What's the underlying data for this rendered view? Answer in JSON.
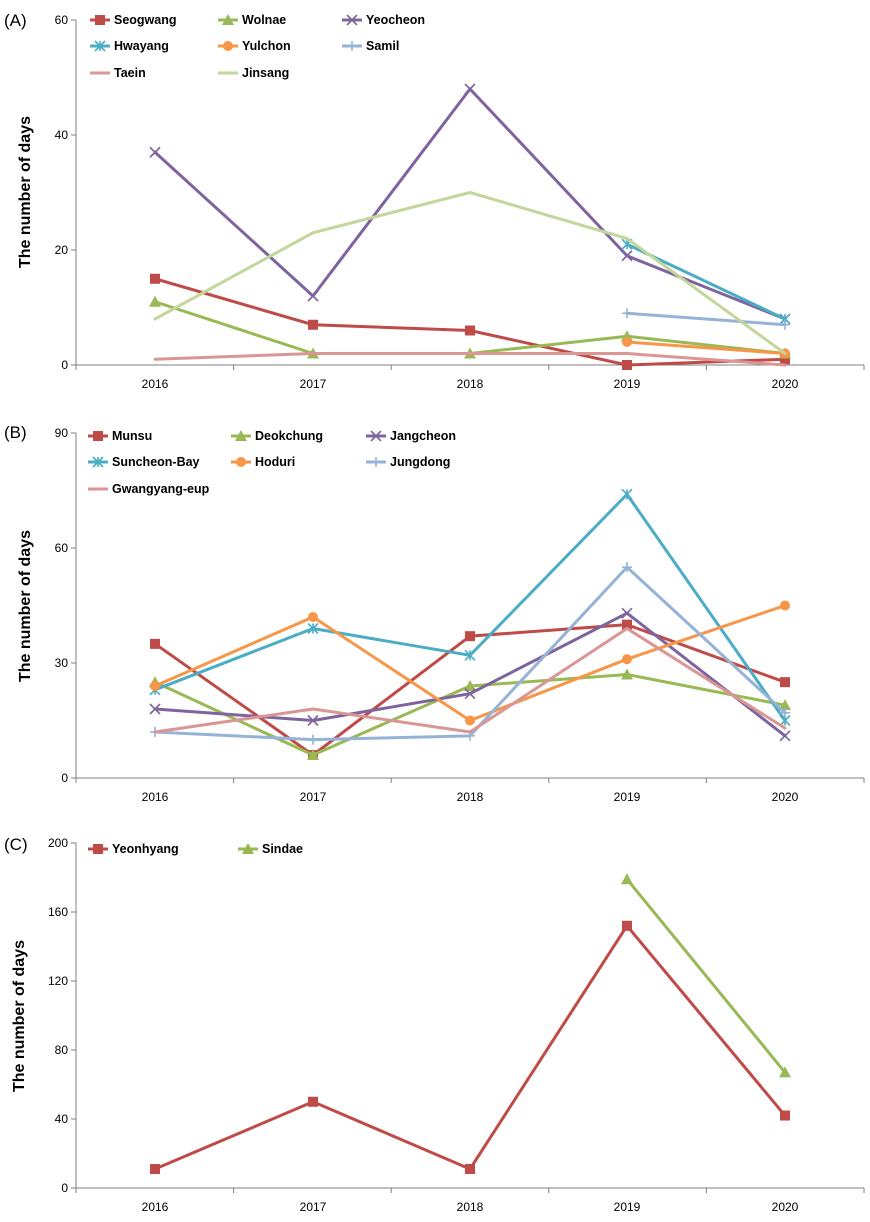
{
  "chart_data": [
    {
      "type": "line",
      "panel_label": "(A)",
      "ylabel": "The number of days",
      "xlabel": "",
      "categories": [
        "2016",
        "2017",
        "2018",
        "2019",
        "2020"
      ],
      "ylim": [
        0,
        60
      ],
      "yticks": [
        "0",
        "20",
        "40",
        "60"
      ],
      "series": [
        {
          "name": "Seogwang",
          "color": "#BE4B48",
          "marker": "square",
          "values": [
            15,
            7,
            6,
            0,
            1
          ]
        },
        {
          "name": "Wolnae",
          "color": "#98B954",
          "marker": "triangle",
          "values": [
            11,
            2,
            2,
            5,
            2
          ]
        },
        {
          "name": "Yeocheon",
          "color": "#7E649E",
          "marker": "x",
          "values": [
            37,
            12,
            48,
            19,
            8
          ]
        },
        {
          "name": "Hwayang",
          "color": "#4BACC6",
          "marker": "star",
          "values": [
            null,
            null,
            null,
            21,
            8
          ]
        },
        {
          "name": "Yulchon",
          "color": "#F79646",
          "marker": "circle",
          "values": [
            null,
            null,
            null,
            4,
            2
          ]
        },
        {
          "name": "Samil",
          "color": "#95B3D7",
          "marker": "plus",
          "values": [
            null,
            null,
            null,
            9,
            7
          ]
        },
        {
          "name": "Taein",
          "color": "#D99694",
          "marker": "none",
          "values": [
            1,
            2,
            2,
            2,
            0
          ]
        },
        {
          "name": "Jinsang",
          "color": "#C3D69B",
          "marker": "none",
          "values": [
            8,
            23,
            30,
            22,
            2
          ]
        }
      ]
    },
    {
      "type": "line",
      "panel_label": "(B)",
      "ylabel": "The number of days",
      "xlabel": "",
      "categories": [
        "2016",
        "2017",
        "2018",
        "2019",
        "2020"
      ],
      "ylim": [
        0,
        90
      ],
      "yticks": [
        "0",
        "30",
        "60",
        "90"
      ],
      "series": [
        {
          "name": "Munsu",
          "color": "#BE4B48",
          "marker": "square",
          "values": [
            35,
            6,
            37,
            40,
            25
          ]
        },
        {
          "name": "Deokchung",
          "color": "#98B954",
          "marker": "triangle",
          "values": [
            25,
            6,
            24,
            27,
            19
          ]
        },
        {
          "name": "Jangcheon",
          "color": "#7E649E",
          "marker": "x",
          "values": [
            18,
            15,
            22,
            43,
            11
          ]
        },
        {
          "name": "Suncheon-Bay",
          "color": "#4BACC6",
          "marker": "star",
          "values": [
            23,
            39,
            32,
            74,
            15
          ]
        },
        {
          "name": "Hoduri",
          "color": "#F79646",
          "marker": "circle",
          "values": [
            24,
            42,
            15,
            31,
            45
          ]
        },
        {
          "name": "Jungdong",
          "color": "#95B3D7",
          "marker": "plus",
          "values": [
            12,
            10,
            11,
            55,
            17
          ]
        },
        {
          "name": "Gwangyang-eup",
          "color": "#D99694",
          "marker": "none",
          "values": [
            12,
            18,
            12,
            39,
            13
          ]
        }
      ]
    },
    {
      "type": "line",
      "panel_label": "(C)",
      "ylabel": "The number of days",
      "xlabel": "",
      "categories": [
        "2016",
        "2017",
        "2018",
        "2019",
        "2020"
      ],
      "ylim": [
        0,
        200
      ],
      "yticks": [
        "0",
        "40",
        "80",
        "120",
        "160",
        "200"
      ],
      "series": [
        {
          "name": "Yeonhyang",
          "color": "#BE4B48",
          "marker": "square",
          "values": [
            11,
            50,
            11,
            152,
            42
          ]
        },
        {
          "name": "Sindae",
          "color": "#98B954",
          "marker": "triangle",
          "values": [
            null,
            null,
            null,
            179,
            67
          ]
        }
      ]
    }
  ]
}
